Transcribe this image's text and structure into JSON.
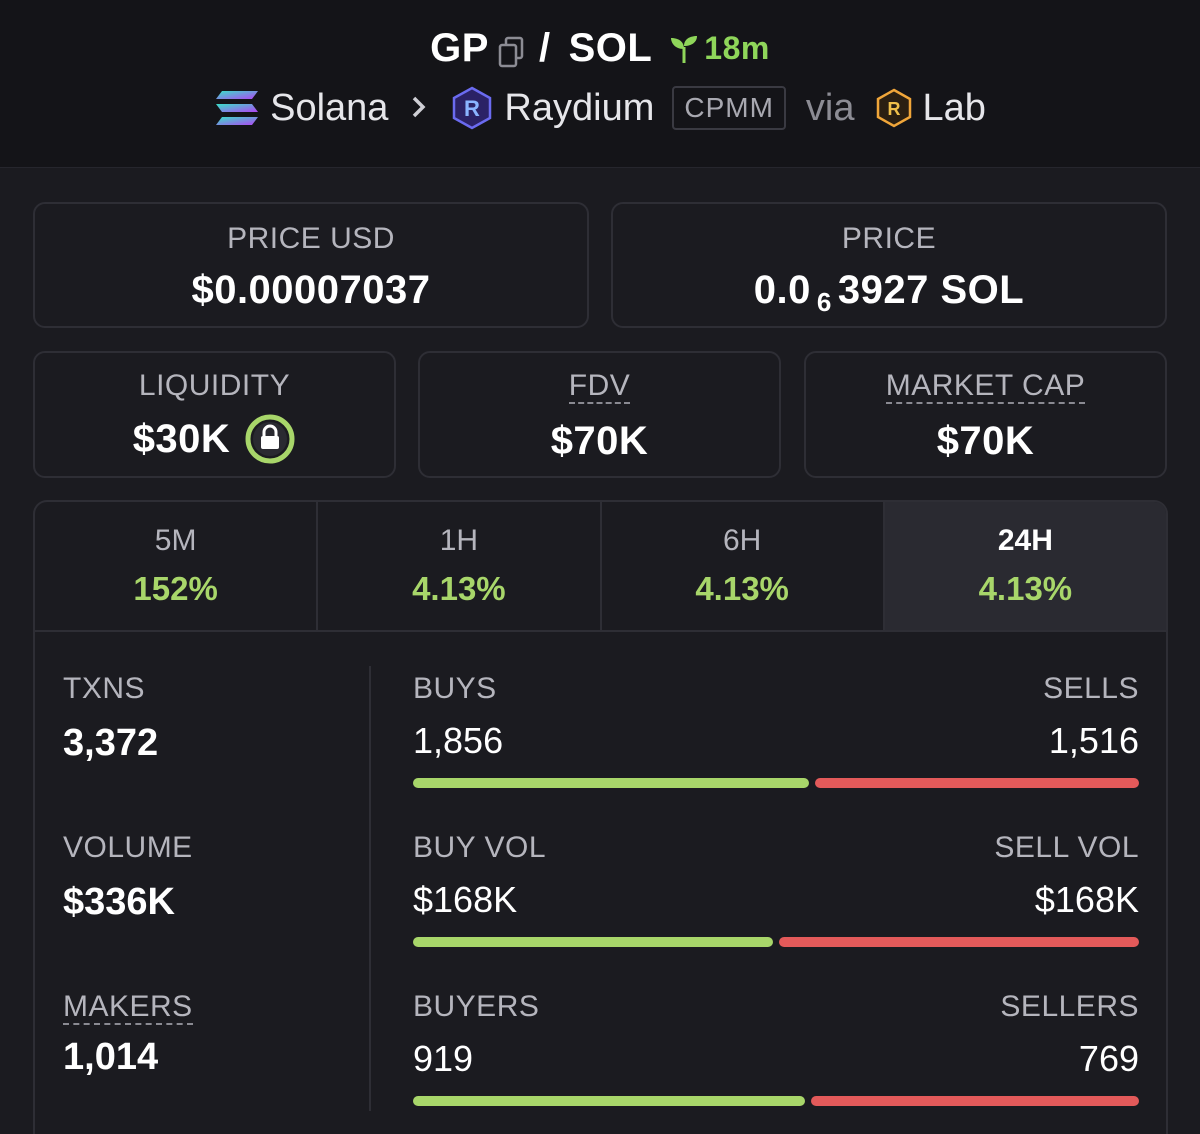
{
  "header": {
    "base_symbol": "GP",
    "slash": "/",
    "quote_symbol": "SOL",
    "age": "18m",
    "chain": "Solana",
    "dex": "Raydium",
    "pool_type": "CPMM",
    "via_label": "via",
    "launchpad": "Lab"
  },
  "price_usd": {
    "label": "PRICE USD",
    "value": "$0.00007037"
  },
  "price_native": {
    "label": "PRICE",
    "prefix": "0.0",
    "zeros": "6",
    "digits": "3927",
    "unit": "SOL"
  },
  "liquidity": {
    "label": "LIQUIDITY",
    "value": "$30K"
  },
  "fdv": {
    "label": "FDV",
    "value": "$70K"
  },
  "market_cap": {
    "label": "MARKET CAP",
    "value": "$70K"
  },
  "tabs": [
    {
      "label": "5M",
      "value": "152%"
    },
    {
      "label": "1H",
      "value": "4.13%"
    },
    {
      "label": "6H",
      "value": "4.13%"
    },
    {
      "label": "24H",
      "value": "4.13%",
      "active": true
    }
  ],
  "stats": {
    "txns": {
      "label": "TXNS",
      "value": "3,372"
    },
    "volume": {
      "label": "VOLUME",
      "value": "$336K"
    },
    "makers": {
      "label": "MAKERS",
      "value": "1,014"
    },
    "buys": {
      "label": "BUYS",
      "value": "1,856"
    },
    "sells": {
      "label": "SELLS",
      "value": "1,516"
    },
    "buy_vol": {
      "label": "BUY VOL",
      "value": "$168K"
    },
    "sell_vol": {
      "label": "SELL VOL",
      "value": "$168K"
    },
    "buyers": {
      "label": "BUYERS",
      "value": "919"
    },
    "sellers": {
      "label": "SELLERS",
      "value": "769"
    },
    "ratios": {
      "txns_buy_fraction": 0.55,
      "vol_buy_fraction": 0.5,
      "buyers_fraction": 0.544
    }
  },
  "colors": {
    "green": "#a8d66a",
    "red": "#e35a5a",
    "bg": "#1b1b20",
    "header_bg": "#141418"
  },
  "icons": [
    "copy-icon",
    "seedling-icon",
    "solana-logo-icon",
    "chevron-right-icon",
    "raydium-logo-icon",
    "raydium-lab-logo-icon",
    "lock-icon"
  ]
}
